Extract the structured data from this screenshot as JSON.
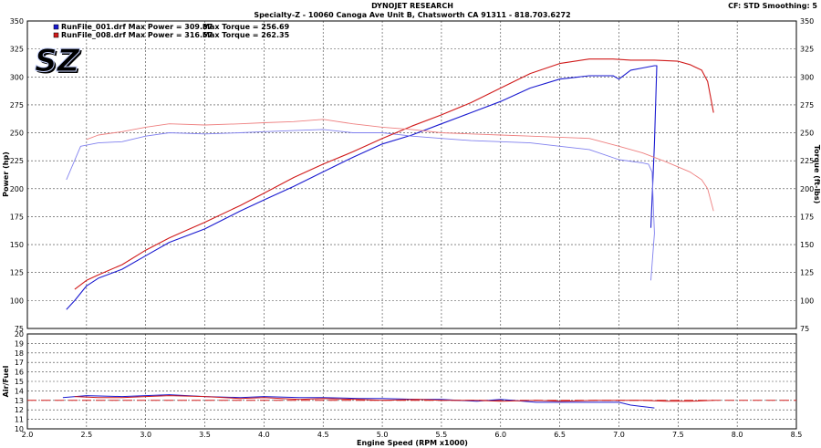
{
  "header": {
    "title": "DYNOJET RESEARCH",
    "subtitle": "Specialty-Z - 10060 Canoga Ave Unit B, Chatsworth CA 91311 - 818.703.6272",
    "cf": "CF: STD  Smoothing: 5"
  },
  "logo": {
    "text": "SZ",
    "color": "#1c35a8"
  },
  "legend": [
    {
      "label": "RunFile_001.drf Max Power = 309.87",
      "torque": "Max Torque = 256.69",
      "color": "#1a1ad0"
    },
    {
      "label": "RunFile_008.drf Max Power = 316.57",
      "torque": "Max Torque = 262.35",
      "color": "#d01a1a"
    }
  ],
  "chart_data": [
    {
      "type": "line",
      "title": "",
      "xlabel": "Engine Speed (RPM x1000)",
      "ylabel": "Power (hp)",
      "y2label": "Torque (ft-lbs)",
      "xlim": [
        2.0,
        8.5
      ],
      "ylim": [
        75,
        350
      ],
      "y2lim": [
        75,
        350
      ],
      "x_ticks": [
        "2.0",
        "2.5",
        "3.0",
        "3.5",
        "4.0",
        "4.5",
        "5.0",
        "5.5",
        "6.0",
        "6.5",
        "7.0",
        "7.5",
        "8.0",
        "8.5"
      ],
      "y_ticks": [
        "75",
        "100",
        "125",
        "150",
        "175",
        "200",
        "225",
        "250",
        "275",
        "300",
        "325",
        "350"
      ],
      "grid": true,
      "series": [
        {
          "name": "RunFile_001.drf Power",
          "color": "#1a1ad0",
          "x": [
            2.33,
            2.4,
            2.5,
            2.6,
            2.8,
            3.0,
            3.2,
            3.5,
            3.8,
            4.0,
            4.25,
            4.5,
            4.75,
            5.0,
            5.25,
            5.5,
            5.75,
            6.0,
            6.25,
            6.5,
            6.75,
            6.95,
            7.0,
            7.1,
            7.2,
            7.3,
            7.32,
            7.3,
            7.28,
            7.27
          ],
          "y": [
            92,
            100,
            113,
            120,
            128,
            140,
            152,
            164,
            180,
            190,
            202,
            215,
            228,
            240,
            248,
            258,
            268,
            278,
            290,
            298,
            301,
            301,
            298,
            306,
            308,
            310,
            310,
            240,
            190,
            165
          ]
        },
        {
          "name": "RunFile_001.drf Torque",
          "color": "#8080ee",
          "x": [
            2.33,
            2.45,
            2.6,
            2.8,
            3.0,
            3.2,
            3.5,
            3.8,
            4.0,
            4.25,
            4.5,
            4.75,
            5.0,
            5.25,
            5.5,
            5.75,
            6.0,
            6.25,
            6.5,
            6.75,
            7.0,
            7.2,
            7.25,
            7.28,
            7.3,
            7.27
          ],
          "y": [
            208,
            238,
            241,
            242,
            247,
            250,
            249,
            250,
            251,
            252,
            253,
            250,
            250,
            247,
            245,
            243,
            242,
            241,
            238,
            235,
            226,
            223,
            222,
            215,
            160,
            118
          ]
        },
        {
          "name": "RunFile_008.drf Power",
          "color": "#d01a1a",
          "x": [
            2.4,
            2.5,
            2.6,
            2.8,
            3.0,
            3.2,
            3.5,
            3.8,
            4.0,
            4.25,
            4.5,
            4.75,
            5.0,
            5.25,
            5.5,
            5.75,
            6.0,
            6.25,
            6.5,
            6.75,
            6.95,
            7.1,
            7.3,
            7.5,
            7.6,
            7.7,
            7.75,
            7.8
          ],
          "y": [
            110,
            118,
            123,
            132,
            145,
            156,
            170,
            185,
            196,
            210,
            222,
            233,
            245,
            256,
            266,
            277,
            290,
            303,
            312,
            316,
            316,
            315,
            315,
            314,
            311,
            306,
            296,
            268
          ]
        },
        {
          "name": "RunFile_008.drf Torque",
          "color": "#ee8080",
          "x": [
            2.5,
            2.6,
            2.8,
            3.0,
            3.2,
            3.5,
            3.8,
            4.0,
            4.25,
            4.5,
            4.75,
            5.0,
            5.25,
            5.5,
            5.75,
            6.0,
            6.25,
            6.5,
            6.75,
            7.0,
            7.2,
            7.4,
            7.6,
            7.7,
            7.75,
            7.8
          ],
          "y": [
            244,
            248,
            251,
            255,
            258,
            257,
            258,
            259,
            260,
            262,
            258,
            255,
            253,
            250,
            249,
            248,
            247,
            246,
            245,
            238,
            232,
            224,
            215,
            208,
            200,
            180
          ]
        }
      ]
    },
    {
      "type": "line",
      "title": "",
      "xlabel": "Engine Speed (RPM x1000)",
      "ylabel": "Air/Fuel",
      "xlim": [
        2.0,
        8.5
      ],
      "ylim": [
        10,
        20
      ],
      "x_ticks": [
        "2.0",
        "2.5",
        "3.0",
        "3.5",
        "4.0",
        "4.5",
        "5.0",
        "5.5",
        "6.0",
        "6.5",
        "7.0",
        "7.5",
        "8.0",
        "8.5"
      ],
      "y_ticks": [
        "10",
        "11",
        "12",
        "13",
        "14",
        "15",
        "16",
        "17",
        "18",
        "19",
        "20"
      ],
      "grid": true,
      "reference_line": 13.0,
      "series": [
        {
          "name": "RunFile_001.drf Air/Fuel",
          "color": "#1a1ad0",
          "x": [
            2.3,
            2.5,
            2.8,
            3.0,
            3.2,
            3.5,
            3.8,
            4.0,
            4.3,
            4.5,
            4.8,
            5.0,
            5.3,
            5.5,
            5.8,
            6.0,
            6.3,
            6.5,
            6.8,
            7.0,
            7.1,
            7.3
          ],
          "y": [
            13.3,
            13.5,
            13.4,
            13.5,
            13.6,
            13.4,
            13.3,
            13.4,
            13.3,
            13.3,
            13.2,
            13.2,
            13.1,
            13.1,
            12.9,
            13.1,
            12.8,
            12.8,
            12.8,
            12.8,
            12.5,
            12.2
          ]
        },
        {
          "name": "RunFile_008.drf Air/Fuel",
          "color": "#d01a1a",
          "x": [
            2.4,
            2.6,
            2.8,
            3.0,
            3.2,
            3.5,
            3.8,
            4.0,
            4.3,
            4.5,
            4.8,
            5.0,
            5.3,
            5.5,
            5.8,
            6.0,
            6.3,
            6.5,
            6.8,
            7.0,
            7.2,
            7.4,
            7.6,
            7.8
          ],
          "y": [
            13.4,
            13.3,
            13.3,
            13.4,
            13.5,
            13.4,
            13.2,
            13.3,
            13.1,
            13.2,
            13.1,
            13.0,
            13.1,
            13.0,
            13.0,
            12.9,
            13.0,
            12.9,
            13.0,
            13.0,
            13.0,
            12.9,
            12.9,
            13.0
          ]
        }
      ]
    }
  ]
}
